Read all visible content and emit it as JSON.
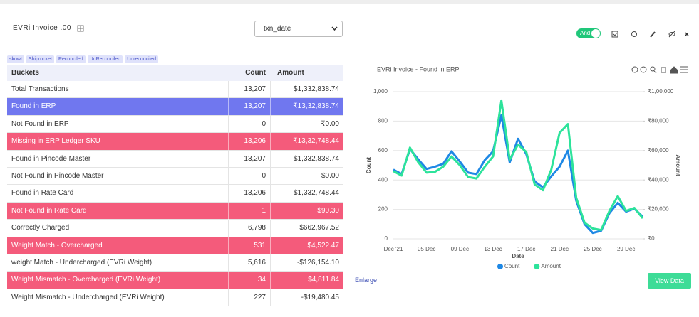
{
  "header": {
    "title": "EVRi Invoice .00",
    "select": "txn_date",
    "toggle": "And"
  },
  "tags": [
    "skowt",
    "Shiprocket",
    "Reconciled",
    "UnReconciled",
    "Unreconciled"
  ],
  "table": {
    "columns": [
      "Buckets",
      "Count",
      "Amount"
    ],
    "rows": [
      [
        "Total Transactions",
        "13,207",
        "$1,332,838.74"
      ],
      [
        "Found in ERP",
        "13,207",
        "₹13,32,838.74"
      ],
      [
        "Not Found in ERP",
        "0",
        "₹0.00"
      ],
      [
        "Missing in ERP Ledger SKU",
        "13,206",
        "₹13,32,748.44"
      ],
      [
        "Found in Pincode Master",
        "13,207",
        "$1,332,838.74"
      ],
      [
        "Not Found in Pincode Master",
        "0",
        "$0.00"
      ],
      [
        "Found in Rate Card",
        "13,206",
        "$1,332,748.44"
      ],
      [
        "Not Found in Rate Card",
        "1",
        "$90.30"
      ],
      [
        "Correctly Charged",
        "6,798",
        "$662,967.52"
      ],
      [
        "Weight Match - Overcharged",
        "531",
        "$4,522.47"
      ],
      [
        "weight Match - Undercharged (EVRi Weight)",
        "5,616",
        "-$126,154.10"
      ],
      [
        "Weight Mismatch - Overcharged (EVRi Weight)",
        "34",
        "$4,811.84"
      ],
      [
        "Weight Mismatch - Undercharged (EVRi Weight)",
        "227",
        "-$19,480.45"
      ]
    ],
    "row_colors": [
      "#ffffff",
      "#7077ef",
      "#ffffff",
      "#f45b7b",
      "#ffffff",
      "#ffffff",
      "#ffffff",
      "#f45b7b",
      "#ffffff",
      "#f45b7b",
      "#ffffff",
      "#f45b7b",
      "#ffffff"
    ]
  },
  "chart_data": {
    "type": "line",
    "title": "EVRi Invoice - Found in ERP",
    "x_label": "Date",
    "y_label": "Count",
    "y2_label": "Amount",
    "categories": [
      "Dec '21",
      null,
      null,
      null,
      "05 Dec",
      null,
      null,
      null,
      "09 Dec",
      null,
      null,
      null,
      "13 Dec",
      null,
      null,
      null,
      "17 Dec",
      null,
      null,
      null,
      "21 Dec",
      null,
      null,
      null,
      "25 Dec",
      null,
      null,
      null,
      "29 Dec",
      null,
      null
    ],
    "series": [
      {
        "name": "Count",
        "color": "#1e88e5",
        "values": [
          470,
          440,
          610,
          540,
          475,
          490,
          510,
          595,
          525,
          450,
          440,
          535,
          595,
          840,
          520,
          680,
          575,
          390,
          350,
          425,
          490,
          600,
          260,
          100,
          40,
          55,
          175,
          245,
          185,
          205,
          150
        ]
      },
      {
        "name": "Amount",
        "color": "#2de39b",
        "axis": "y2",
        "values": [
          46000,
          43000,
          62000,
          52000,
          45000,
          45500,
          49000,
          56000,
          50000,
          42000,
          41000,
          49000,
          56000,
          94000,
          54000,
          64000,
          59000,
          37000,
          33000,
          47000,
          72000,
          78000,
          28000,
          11000,
          7000,
          6000,
          19000,
          29000,
          19000,
          21000,
          14000
        ]
      }
    ],
    "ylim": [
      0,
      1000
    ],
    "yticks": [
      0,
      200,
      400,
      600,
      800,
      {
        "value": 1000,
        "label": "1,000"
      }
    ],
    "y2lim": [
      0,
      100000
    ],
    "y2ticks": [
      {
        "value": 0,
        "label": "₹0"
      },
      {
        "value": 20000,
        "label": "₹20,000"
      },
      {
        "value": 40000,
        "label": "₹40,000"
      },
      {
        "value": 60000,
        "label": "₹60,000"
      },
      {
        "value": 80000,
        "label": "₹80,000"
      },
      {
        "value": 100000,
        "label": "₹1,00,000"
      }
    ],
    "grid": true,
    "legend": "bottom"
  },
  "links": {
    "enlarge": "Enlarge",
    "view_data": "View Data"
  }
}
